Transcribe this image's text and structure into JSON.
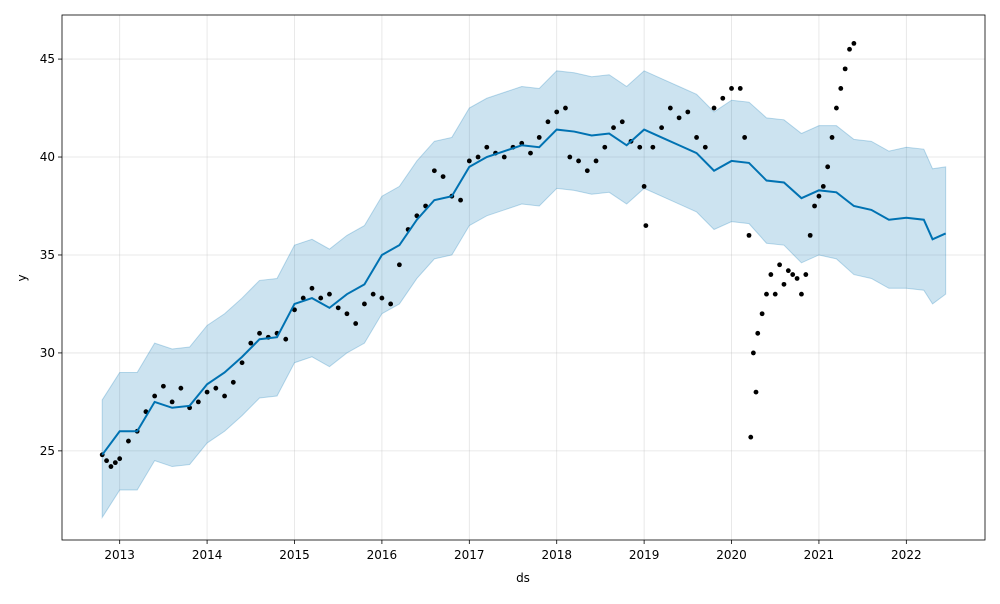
{
  "chart_data": {
    "type": "forecast",
    "xlabel": "ds",
    "ylabel": "y",
    "xlim": [
      2012.34,
      2022.9
    ],
    "ylim": [
      20.45,
      47.25
    ],
    "xticks": [
      2013,
      2014,
      2015,
      2016,
      2017,
      2018,
      2019,
      2020,
      2021,
      2022
    ],
    "yticks": [
      25,
      30,
      35,
      40,
      45
    ],
    "grid": true,
    "observed": {
      "color": "#000000",
      "x": [
        2012.8,
        2012.85,
        2012.9,
        2012.95,
        2013.0,
        2013.1,
        2013.2,
        2013.3,
        2013.4,
        2013.5,
        2013.6,
        2013.7,
        2013.8,
        2013.9,
        2014.0,
        2014.1,
        2014.2,
        2014.3,
        2014.4,
        2014.5,
        2014.6,
        2014.7,
        2014.8,
        2014.9,
        2015.0,
        2015.1,
        2015.2,
        2015.3,
        2015.4,
        2015.5,
        2015.6,
        2015.7,
        2015.8,
        2015.9,
        2016.0,
        2016.1,
        2016.2,
        2016.3,
        2016.4,
        2016.5,
        2016.6,
        2016.7,
        2016.8,
        2016.9,
        2017.0,
        2017.1,
        2017.2,
        2017.3,
        2017.4,
        2017.5,
        2017.6,
        2017.7,
        2017.8,
        2017.9,
        2018.0,
        2018.1,
        2018.15,
        2018.25,
        2018.35,
        2018.45,
        2018.55,
        2018.65,
        2018.75,
        2018.85,
        2018.95,
        2019.0,
        2019.02,
        2019.1,
        2019.2,
        2019.3,
        2019.4,
        2019.5,
        2019.6,
        2019.7,
        2019.8,
        2019.9,
        2020.0,
        2020.1,
        2020.15,
        2020.2,
        2020.22,
        2020.25,
        2020.28,
        2020.3,
        2020.35,
        2020.4,
        2020.45,
        2020.5,
        2020.55,
        2020.6,
        2020.65,
        2020.7,
        2020.75,
        2020.8,
        2020.85,
        2020.9,
        2020.95,
        2021.0,
        2021.05,
        2021.1,
        2021.15,
        2021.2,
        2021.25,
        2021.3,
        2021.35,
        2021.4
      ],
      "y": [
        24.8,
        24.5,
        24.2,
        24.4,
        24.6,
        25.5,
        26,
        27,
        27.8,
        28.3,
        27.5,
        28.2,
        27.2,
        27.5,
        28,
        28.2,
        27.8,
        28.5,
        29.5,
        30.5,
        31,
        30.8,
        31,
        30.7,
        32.2,
        32.8,
        33.3,
        32.8,
        33,
        32.3,
        32,
        31.5,
        32.5,
        33,
        32.8,
        32.5,
        34.5,
        36.3,
        37,
        37.5,
        39.3,
        39,
        38,
        37.8,
        39.8,
        40,
        40.5,
        40.2,
        40,
        40.5,
        40.7,
        40.2,
        41,
        41.8,
        42.3,
        42.5,
        40,
        39.8,
        39.3,
        39.8,
        40.5,
        41.5,
        41.8,
        40.8,
        40.5,
        38.5,
        36.5,
        40.5,
        41.5,
        42.5,
        42,
        42.3,
        41,
        40.5,
        42.5,
        43,
        43.5,
        43.5,
        41,
        36,
        25.7,
        30,
        28,
        31,
        32,
        33,
        34,
        33,
        34.5,
        33.5,
        34.2,
        34,
        33.8,
        33,
        34,
        36,
        37.5,
        38,
        38.5,
        39.5,
        41,
        42.5,
        43.5,
        44.5,
        45.5,
        45.8
      ]
    },
    "forecast": {
      "color": "#0072B2",
      "band_color": "#0072B2",
      "x": [
        2012.8,
        2013.0,
        2013.2,
        2013.4,
        2013.6,
        2013.8,
        2014.0,
        2014.2,
        2014.4,
        2014.6,
        2014.8,
        2015.0,
        2015.2,
        2015.4,
        2015.6,
        2015.8,
        2016.0,
        2016.2,
        2016.4,
        2016.6,
        2016.8,
        2017.0,
        2017.2,
        2017.4,
        2017.6,
        2017.8,
        2018.0,
        2018.2,
        2018.4,
        2018.6,
        2018.8,
        2019.0,
        2019.2,
        2019.4,
        2019.6,
        2019.8,
        2020.0,
        2020.2,
        2020.4,
        2020.6,
        2020.8,
        2021.0,
        2021.2,
        2021.4,
        2021.6,
        2021.8,
        2022.0,
        2022.2,
        2022.3,
        2022.45
      ],
      "yhat": [
        24.8,
        26,
        26,
        27.5,
        27.2,
        27.3,
        28.4,
        29,
        29.8,
        30.7,
        30.8,
        32.5,
        32.8,
        32.3,
        33,
        33.5,
        35,
        35.5,
        36.8,
        37.8,
        38,
        39.5,
        40,
        40.3,
        40.6,
        40.5,
        41.4,
        41.3,
        41.1,
        41.2,
        40.6,
        41.4,
        41,
        40.6,
        40.2,
        39.3,
        39.8,
        39.7,
        38.8,
        38.7,
        37.9,
        38.3,
        38.2,
        37.5,
        37.3,
        36.8,
        36.9,
        36.8,
        35.8,
        36.1
      ],
      "yhat_lower": [
        21.6,
        23,
        23,
        24.5,
        24.2,
        24.3,
        25.4,
        26,
        26.8,
        27.7,
        27.8,
        29.5,
        29.8,
        29.3,
        30,
        30.5,
        32,
        32.5,
        33.8,
        34.8,
        35,
        36.5,
        37,
        37.3,
        37.6,
        37.5,
        38.4,
        38.3,
        38.1,
        38.2,
        37.6,
        38.4,
        38,
        37.6,
        37.2,
        36.3,
        36.7,
        36.6,
        35.6,
        35.5,
        34.6,
        35,
        34.8,
        34,
        33.8,
        33.3,
        33.3,
        33.2,
        32.5,
        33
      ],
      "yhat_upper": [
        27.6,
        29,
        29,
        30.5,
        30.2,
        30.3,
        31.4,
        32,
        32.8,
        33.7,
        33.8,
        35.5,
        35.8,
        35.3,
        36,
        36.5,
        38,
        38.5,
        39.8,
        40.8,
        41,
        42.5,
        43,
        43.3,
        43.6,
        43.5,
        44.4,
        44.3,
        44.1,
        44.2,
        43.6,
        44.4,
        44,
        43.6,
        43.2,
        42.3,
        42.9,
        42.8,
        42,
        41.9,
        41.2,
        41.6,
        41.6,
        40.9,
        40.8,
        40.3,
        40.5,
        40.4,
        39.4,
        39.5
      ]
    }
  }
}
